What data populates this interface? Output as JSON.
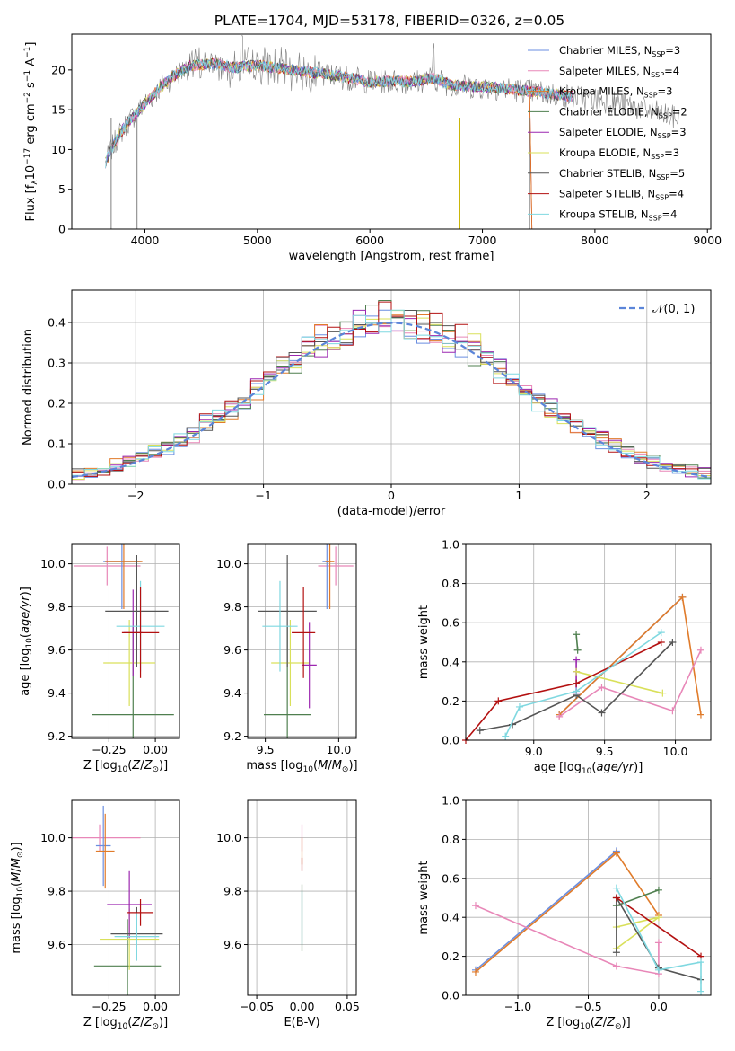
{
  "title": "PLATE=1704, MJD=53178, FIBERID=0326, z=0.05",
  "colors": {
    "Chabrier MILES": "#6a8ee0",
    "Salpeter MILES": "#e887b8",
    "Kroupa MILES": "#e07b2a",
    "Chabrier ELODIE": "#4f7f4f",
    "Salpeter ELODIE": "#9c27b0",
    "Kroupa ELODIE": "#d9e05a",
    "Chabrier STELIB": "#555555",
    "Salpeter STELIB": "#b31010",
    "Kroupa STELIB": "#7fd8e0",
    "data": "#808080",
    "normal": "#5b85d9"
  },
  "chart_data": [
    {
      "id": "spectrum",
      "type": "line",
      "title": "PLATE=1704, MJD=53178, FIBERID=0326, z=0.05",
      "xlabel": "wavelength [Angstrom, rest frame]",
      "ylabel": "Flux [f_λ 10^-17 erg cm^-2 s^-1 A^-1]",
      "xlim": [
        3350,
        9030
      ],
      "ylim": [
        0,
        24.5
      ],
      "xticks": [
        "4000",
        "5000",
        "6000",
        "7000",
        "8000",
        "9000"
      ],
      "yticks": [
        "0",
        "5",
        "10",
        "15",
        "20"
      ],
      "grid": false,
      "legend_position": "top-right",
      "legend": [
        {
          "label": "Chabrier MILES, N",
          "sub": "SSP",
          "suffix": "=3"
        },
        {
          "label": "Salpeter MILES, N",
          "sub": "SSP",
          "suffix": "=4"
        },
        {
          "label": "Kroupa MILES, N",
          "sub": "SSP",
          "suffix": "=3"
        },
        {
          "label": "Chabrier ELODIE, N",
          "sub": "SSP",
          "suffix": "=2"
        },
        {
          "label": "Salpeter ELODIE, N",
          "sub": "SSP",
          "suffix": "=3"
        },
        {
          "label": "Kroupa ELODIE, N",
          "sub": "SSP",
          "suffix": "=3"
        },
        {
          "label": "Chabrier STELIB, N",
          "sub": "SSP",
          "suffix": "=5"
        },
        {
          "label": "Salpeter STELIB, N",
          "sub": "SSP",
          "suffix": "=4"
        },
        {
          "label": "Kroupa STELIB, N",
          "sub": "SSP",
          "suffix": "=4"
        }
      ],
      "continuum": {
        "x": [
          3650,
          3700,
          3780,
          3850,
          3950,
          4050,
          4150,
          4250,
          4400,
          4600,
          4800,
          5000,
          5200,
          5400,
          5600,
          5800,
          6000,
          6200,
          6400,
          6560,
          6700,
          6900,
          7100,
          7300,
          7500,
          7700,
          7900,
          8100,
          8300,
          8500,
          8750
        ],
        "y": [
          8.3,
          10,
          12,
          13.5,
          15,
          16.5,
          18,
          19.2,
          20.5,
          20.8,
          20.3,
          20.6,
          20.2,
          19.8,
          19.5,
          19.0,
          18.5,
          18.6,
          18.5,
          19.0,
          18.2,
          17.9,
          17.8,
          17.5,
          17.2,
          16.8,
          16.5,
          16.1,
          15.6,
          14.8,
          13.8
        ]
      }
    },
    {
      "id": "residuals",
      "type": "line",
      "xlabel": "(data-model)/error",
      "ylabel": "Normed distribution",
      "xlim": [
        -2.5,
        2.5
      ],
      "ylim": [
        0,
        0.48
      ],
      "xticks": [
        "−2",
        "−1",
        "0",
        "1",
        "2"
      ],
      "yticks": [
        "0.0",
        "0.1",
        "0.2",
        "0.3",
        "0.4"
      ],
      "grid": true,
      "legend_position": "top-right",
      "legend": [
        "𝒩(0, 1)"
      ]
    },
    {
      "id": "age-vs-Z",
      "type": "scatter",
      "xlabel": "Z [log10(Z/Z⊙)]",
      "ylabel": "age  [log10(age/yr)]",
      "xlim": [
        -0.45,
        0.13
      ],
      "ylim": [
        9.19,
        10.09
      ],
      "xticks": [
        "−0.25",
        "0.00"
      ],
      "yticks": [
        "9.2",
        "9.4",
        "9.6",
        "9.8",
        "10.0"
      ],
      "grid": true,
      "points": [
        {
          "s": "Salpeter MILES",
          "x": -0.26,
          "y": 9.99,
          "xe": 0.18,
          "ye": 0.18
        },
        {
          "s": "Chabrier MILES",
          "x": -0.18,
          "y": 10.01,
          "xe": 0.1,
          "ye": 0.44
        },
        {
          "s": "Kroupa MILES",
          "x": -0.17,
          "y": 10.01,
          "xe": 0.1,
          "ye": 0.44
        },
        {
          "s": "Chabrier ELODIE",
          "x": -0.12,
          "y": 9.3,
          "xe": 0.22,
          "ye": 0.82
        },
        {
          "s": "Kroupa ELODIE",
          "x": -0.14,
          "y": 9.54,
          "xe": 0.14,
          "ye": 0.4
        },
        {
          "s": "Salpeter ELODIE",
          "x": -0.12,
          "y": 9.68,
          "xe": 0.05,
          "ye": 0.4
        },
        {
          "s": "Chabrier STELIB",
          "x": -0.1,
          "y": 9.78,
          "xe": 0.17,
          "ye": 0.52
        },
        {
          "s": "Kroupa STELIB",
          "x": -0.08,
          "y": 9.71,
          "xe": 0.13,
          "ye": 0.42
        },
        {
          "s": "Salpeter STELIB",
          "x": -0.08,
          "y": 9.68,
          "xe": 0.1,
          "ye": 0.42
        }
      ]
    },
    {
      "id": "age-vs-mass",
      "type": "scatter",
      "xlabel": "mass [log10(M/M⊙)]",
      "xlim": [
        9.38,
        10.12
      ],
      "ylim": [
        9.19,
        10.09
      ],
      "xticks": [
        "9.5",
        "10.0"
      ],
      "yticks": [
        "9.2",
        "9.4",
        "9.6",
        "9.8",
        "10.0"
      ],
      "grid": true,
      "points": [
        {
          "s": "Salpeter MILES",
          "x": 9.98,
          "y": 9.99,
          "xe": 0.12,
          "ye": 0.18
        },
        {
          "s": "Chabrier MILES",
          "x": 9.92,
          "y": 10.01,
          "xe": 0.03,
          "ye": 0.44
        },
        {
          "s": "Kroupa MILES",
          "x": 9.94,
          "y": 10.01,
          "xe": 0.03,
          "ye": 0.44
        },
        {
          "s": "Chabrier ELODIE",
          "x": 9.65,
          "y": 9.3,
          "xe": 0.16,
          "ye": 0.82
        },
        {
          "s": "Kroupa ELODIE",
          "x": 9.67,
          "y": 9.54,
          "xe": 0.13,
          "ye": 0.4
        },
        {
          "s": "Salpeter ELODIE",
          "x": 9.8,
          "y": 9.53,
          "xe": 0.05,
          "ye": 0.4
        },
        {
          "s": "Chabrier STELIB",
          "x": 9.65,
          "y": 9.78,
          "xe": 0.2,
          "ye": 0.52
        },
        {
          "s": "Kroupa STELIB",
          "x": 9.6,
          "y": 9.71,
          "xe": 0.12,
          "ye": 0.42
        },
        {
          "s": "Salpeter STELIB",
          "x": 9.76,
          "y": 9.68,
          "xe": 0.08,
          "ye": 0.42
        }
      ]
    },
    {
      "id": "weight-vs-age",
      "type": "line",
      "xlabel": "age  [log10(age/yr)]",
      "ylabel": "mass weight",
      "xlim": [
        8.52,
        10.25
      ],
      "ylim": [
        0,
        1.0
      ],
      "xticks": [
        "9.0",
        "9.5",
        "10.0"
      ],
      "yticks": [
        "0.0",
        "0.2",
        "0.4",
        "0.6",
        "0.8",
        "1.0"
      ],
      "grid": true,
      "series": [
        {
          "s": "Chabrier MILES",
          "x": [
            9.18,
            10.05
          ],
          "y": [
            0.13,
            0.73
          ]
        },
        {
          "s": "Kroupa MILES",
          "x": [
            9.18,
            10.05,
            10.18
          ],
          "y": [
            0.13,
            0.73,
            0.13
          ]
        },
        {
          "s": "Salpeter MILES",
          "x": [
            9.18,
            9.48,
            9.98,
            10.18
          ],
          "y": [
            0.12,
            0.27,
            0.15,
            0.46
          ]
        },
        {
          "s": "Chabrier ELODIE",
          "x": [
            9.3,
            9.31
          ],
          "y": [
            0.54,
            0.46
          ]
        },
        {
          "s": "Salpeter ELODIE",
          "x": [
            9.3,
            9.3,
            9.3
          ],
          "y": [
            0.41,
            0.35,
            0.24
          ]
        },
        {
          "s": "Kroupa ELODIE",
          "x": [
            9.3,
            9.91
          ],
          "y": [
            0.35,
            0.24
          ]
        },
        {
          "s": "Chabrier STELIB",
          "x": [
            8.62,
            8.85,
            9.3,
            9.48,
            9.98
          ],
          "y": [
            0.05,
            0.08,
            0.23,
            0.14,
            0.5
          ]
        },
        {
          "s": "Salpeter STELIB",
          "x": [
            8.52,
            8.75,
            9.3,
            9.9
          ],
          "y": [
            0.0,
            0.2,
            0.29,
            0.5
          ]
        },
        {
          "s": "Kroupa STELIB",
          "x": [
            8.8,
            8.9,
            9.3,
            9.9
          ],
          "y": [
            0.02,
            0.17,
            0.25,
            0.55
          ]
        }
      ]
    },
    {
      "id": "mass-vs-Z",
      "type": "scatter",
      "xlabel": "Z [log10(Z/Z⊙)]",
      "ylabel": "mass [log10(M/M⊙)]",
      "xlim": [
        -0.45,
        0.13
      ],
      "ylim": [
        9.41,
        10.14
      ],
      "xticks": [
        "−0.25",
        "0.00"
      ],
      "yticks": [
        "9.6",
        "9.8",
        "10.0"
      ],
      "grid": true,
      "points": [
        {
          "s": "Salpeter MILES",
          "x": -0.3,
          "y": 10.0,
          "xe": 0.22,
          "ye": 0.1
        },
        {
          "s": "Chabrier MILES",
          "x": -0.28,
          "y": 9.97,
          "xe": 0.04,
          "ye": 0.3
        },
        {
          "s": "Kroupa MILES",
          "x": -0.27,
          "y": 9.95,
          "xe": 0.05,
          "ye": 0.28
        },
        {
          "s": "Chabrier ELODIE",
          "x": -0.15,
          "y": 9.52,
          "xe": 0.18,
          "ye": 0.35
        },
        {
          "s": "Kroupa ELODIE",
          "x": -0.14,
          "y": 9.62,
          "xe": 0.16,
          "ye": 0.23
        },
        {
          "s": "Salpeter ELODIE",
          "x": -0.14,
          "y": 9.75,
          "xe": 0.12,
          "ye": 0.25
        },
        {
          "s": "Chabrier STELIB",
          "x": -0.1,
          "y": 9.64,
          "xe": 0.14,
          "ye": 0.2
        },
        {
          "s": "Kroupa STELIB",
          "x": -0.1,
          "y": 9.63,
          "xe": 0.12,
          "ye": 0.18
        },
        {
          "s": "Salpeter STELIB",
          "x": -0.08,
          "y": 9.72,
          "xe": 0.07,
          "ye": 0.1
        }
      ]
    },
    {
      "id": "mass-vs-ebv",
      "type": "scatter",
      "xlabel": "E(B-V)",
      "xlim": [
        -0.06,
        0.06
      ],
      "ylim": [
        9.41,
        10.14
      ],
      "xticks": [
        "−0.05",
        "0.00",
        "0.05"
      ],
      "yticks": [
        "9.6",
        "9.8",
        "10.0"
      ],
      "grid": true,
      "points": [
        {
          "s": "Salpeter MILES",
          "x": 0.0,
          "y": 10.0,
          "xe": 0,
          "ye": 0.1
        },
        {
          "s": "Kroupa MILES",
          "x": 0.0,
          "y": 9.95,
          "xe": 0,
          "ye": 0.1
        },
        {
          "s": "Salpeter STELIB",
          "x": 0.0,
          "y": 9.9,
          "xe": 0,
          "ye": 0.05
        },
        {
          "s": "Chabrier ELODIE",
          "x": 0.0,
          "y": 9.7,
          "xe": 0,
          "ye": 0.25
        },
        {
          "s": "Kroupa STELIB",
          "x": 0.0,
          "y": 9.7,
          "xe": 0,
          "ye": 0.2
        }
      ]
    },
    {
      "id": "weight-vs-Z",
      "type": "line",
      "xlabel": "Z [log10(Z/Z⊙)]",
      "ylabel": "mass weight",
      "xlim": [
        -1.37,
        0.37
      ],
      "ylim": [
        0,
        1.0
      ],
      "xticks": [
        "−1.0",
        "−0.5",
        "0.0"
      ],
      "yticks": [
        "0.0",
        "0.2",
        "0.4",
        "0.6",
        "0.8",
        "1.0"
      ],
      "grid": true,
      "series": [
        {
          "s": "Chabrier MILES",
          "x": [
            -1.3,
            -0.3
          ],
          "y": [
            0.13,
            0.74
          ]
        },
        {
          "s": "Kroupa MILES",
          "x": [
            -1.3,
            -0.3,
            0.0
          ],
          "y": [
            0.12,
            0.73,
            0.41
          ]
        },
        {
          "s": "Salpeter MILES",
          "x": [
            -1.3,
            -0.3,
            0.0,
            0.0
          ],
          "y": [
            0.46,
            0.15,
            0.11,
            0.27
          ]
        },
        {
          "s": "Chabrier ELODIE",
          "x": [
            -0.3,
            0.0
          ],
          "y": [
            0.46,
            0.54
          ]
        },
        {
          "s": "Kroupa ELODIE",
          "x": [
            -0.3,
            0.0,
            -0.3
          ],
          "y": [
            0.35,
            0.4,
            0.24
          ]
        },
        {
          "s": "Chabrier STELIB",
          "x": [
            -0.3,
            -0.3,
            0.0,
            0.3
          ],
          "y": [
            0.22,
            0.5,
            0.14,
            0.08
          ]
        },
        {
          "s": "Salpeter STELIB",
          "x": [
            -0.3,
            0.3
          ],
          "y": [
            0.5,
            0.2
          ]
        },
        {
          "s": "Kroupa STELIB",
          "x": [
            -0.3,
            0.0,
            0.3,
            0.3
          ],
          "y": [
            0.55,
            0.13,
            0.17,
            0.02
          ]
        }
      ]
    }
  ]
}
